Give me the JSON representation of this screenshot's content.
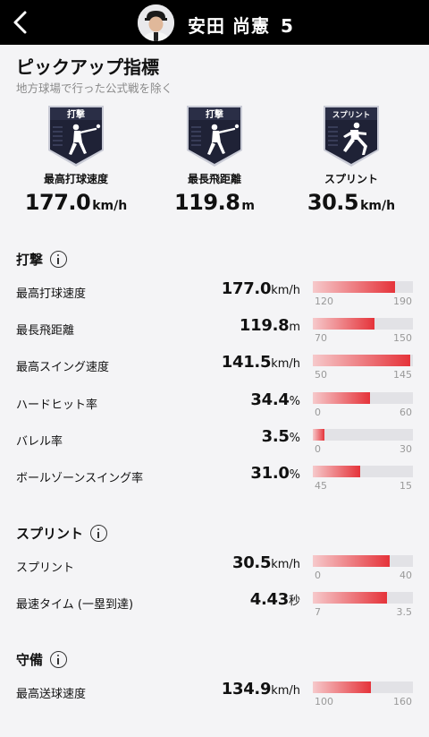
{
  "header": {
    "player_name": "安田 尚憲",
    "player_number": "5"
  },
  "pickup": {
    "title": "ピックアップ指標",
    "note": "地方球場で行った公式戦を除く",
    "cards": [
      {
        "badge_text": "打撃",
        "icon": "batter-icon",
        "label": "最高打球速度",
        "value": "177.0",
        "unit": "km/h"
      },
      {
        "badge_text": "打撃",
        "icon": "batter-icon",
        "label": "最長飛距離",
        "value": "119.8",
        "unit": "m"
      },
      {
        "badge_text": "スプリント",
        "icon": "runner-icon",
        "label": "スプリント",
        "value": "30.5",
        "unit": "km/h"
      }
    ]
  },
  "sections": [
    {
      "title": "打撃",
      "metrics": [
        {
          "label": "最高打球速度",
          "value": "177.0",
          "unit": "km/h",
          "level": 0.82,
          "min": "120",
          "max": "190"
        },
        {
          "label": "最長飛距離",
          "value": "119.8",
          "unit": "m",
          "level": 0.62,
          "min": "70",
          "max": "150"
        },
        {
          "label": "最高スイング速度",
          "value": "141.5",
          "unit": "km/h",
          "level": 0.97,
          "min": "50",
          "max": "145"
        },
        {
          "label": "ハードヒット率",
          "value": "34.4",
          "unit": "%",
          "level": 0.57,
          "min": "0",
          "max": "60"
        },
        {
          "label": "バレル率",
          "value": "3.5",
          "unit": "%",
          "level": 0.12,
          "min": "0",
          "max": "30"
        },
        {
          "label": "ボールゾーンスイング率",
          "value": "31.0",
          "unit": "%",
          "level": 0.47,
          "min": "45",
          "max": "15"
        }
      ]
    },
    {
      "title": "スプリント",
      "metrics": [
        {
          "label": "スプリント",
          "value": "30.5",
          "unit": "km/h",
          "level": 0.77,
          "min": "0",
          "max": "40"
        },
        {
          "label": "最速タイム (一塁到達)",
          "value": "4.43",
          "unit": "秒",
          "level": 0.74,
          "min": "7",
          "max": "3.5"
        }
      ]
    },
    {
      "title": "守備",
      "metrics": [
        {
          "label": "最高送球速度",
          "value": "134.9",
          "unit": "km/h",
          "level": 0.58,
          "min": "100",
          "max": "160"
        }
      ]
    }
  ],
  "colors": {
    "header_bg": "#000000",
    "badge_bg": "#1f2236",
    "bar_fill": "#e5333a",
    "bar_track": "#e2e2e6",
    "page_bg": "#f4f4f6"
  }
}
